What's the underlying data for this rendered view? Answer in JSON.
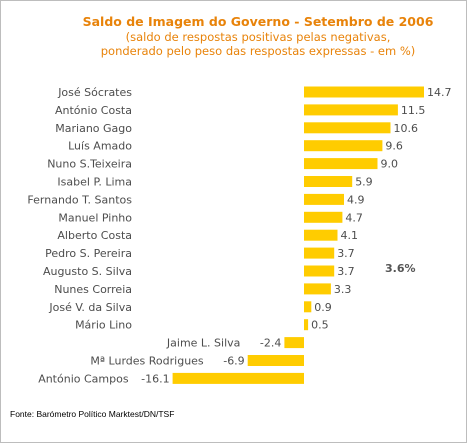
{
  "chart_data": {
    "type": "bar",
    "orientation": "horizontal",
    "title": "Saldo de Imagem do Governo - Setembro de 2006",
    "subtitle_lines": [
      "(saldo de respostas positivas pelas negativas,",
      "ponderado pelo peso das respostas expressas - em %)"
    ],
    "categories": [
      "José Sócrates",
      "António Costa",
      "Mariano Gago",
      "Luís Amado",
      "Nuno S.Teixeira",
      "Isabel P. Lima",
      "Fernando T. Santos",
      "Manuel Pinho",
      "Alberto Costa",
      "Pedro S. Pereira",
      "Augusto S. Silva",
      "Nunes Correia",
      "José V. da Silva",
      "Mário Lino",
      "Jaime L. Silva",
      "Mª Lurdes Rodrigues",
      "António Campos"
    ],
    "values": [
      14.7,
      11.5,
      10.6,
      9.6,
      9.0,
      5.9,
      4.9,
      4.7,
      4.1,
      3.7,
      3.7,
      3.3,
      0.9,
      0.5,
      -2.4,
      -6.9,
      -16.1
    ],
    "value_labels": [
      "14.7",
      "11.5",
      "10.6",
      "9.6",
      "9.0",
      "5.9",
      "4.9",
      "4.7",
      "4.1",
      "3.7",
      "3.7",
      "3.3",
      "0.9",
      "0.5",
      "-2.4",
      "-6.9",
      "-16.1"
    ],
    "annotation": "3.6%",
    "source": "Fonte: Barómetro Político Marktest/DN/TSF",
    "xlim": [
      -16.1,
      14.7
    ],
    "grid": false,
    "bar_color": "#ffcc00",
    "title_color": "#e8830a"
  }
}
